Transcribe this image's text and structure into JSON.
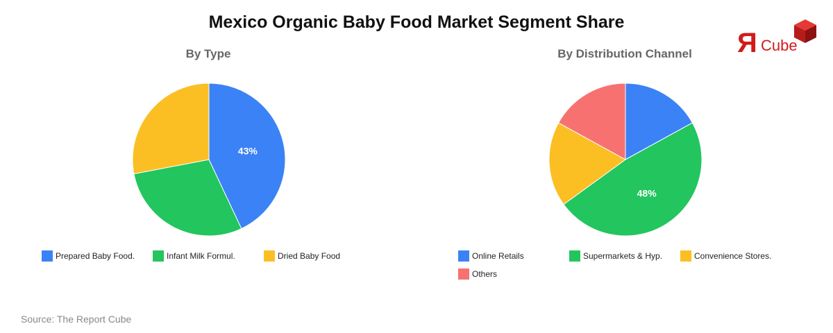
{
  "title": "Mexico Organic Baby Food Market Segment Share",
  "source": "Source: The Report Cube",
  "logo": {
    "r_char": "Я",
    "text": "Cube",
    "color": "#d01c1c"
  },
  "chart_data": [
    {
      "type": "pie",
      "title": "By Type",
      "legend_position": "bottom",
      "slices": [
        {
          "label": "Prepared Baby Food.",
          "value": 43,
          "color": "#3b82f6",
          "show_label": true
        },
        {
          "label": "Infant Milk Formul.",
          "value": 29,
          "color": "#22c55e",
          "show_label": false
        },
        {
          "label": "Dried Baby Food",
          "value": 28,
          "color": "#fbbf24",
          "show_label": false
        }
      ]
    },
    {
      "type": "pie",
      "title": "By Distribution Channel",
      "legend_position": "bottom",
      "slices": [
        {
          "label": "Online Retails",
          "value": 17,
          "color": "#3b82f6",
          "show_label": false
        },
        {
          "label": "Supermarkets & Hyp.",
          "value": 48,
          "color": "#22c55e",
          "show_label": true
        },
        {
          "label": "Convenience Stores.",
          "value": 18,
          "color": "#fbbf24",
          "show_label": false
        },
        {
          "label": "Others",
          "value": 17,
          "color": "#f87171",
          "show_label": false
        }
      ]
    }
  ]
}
